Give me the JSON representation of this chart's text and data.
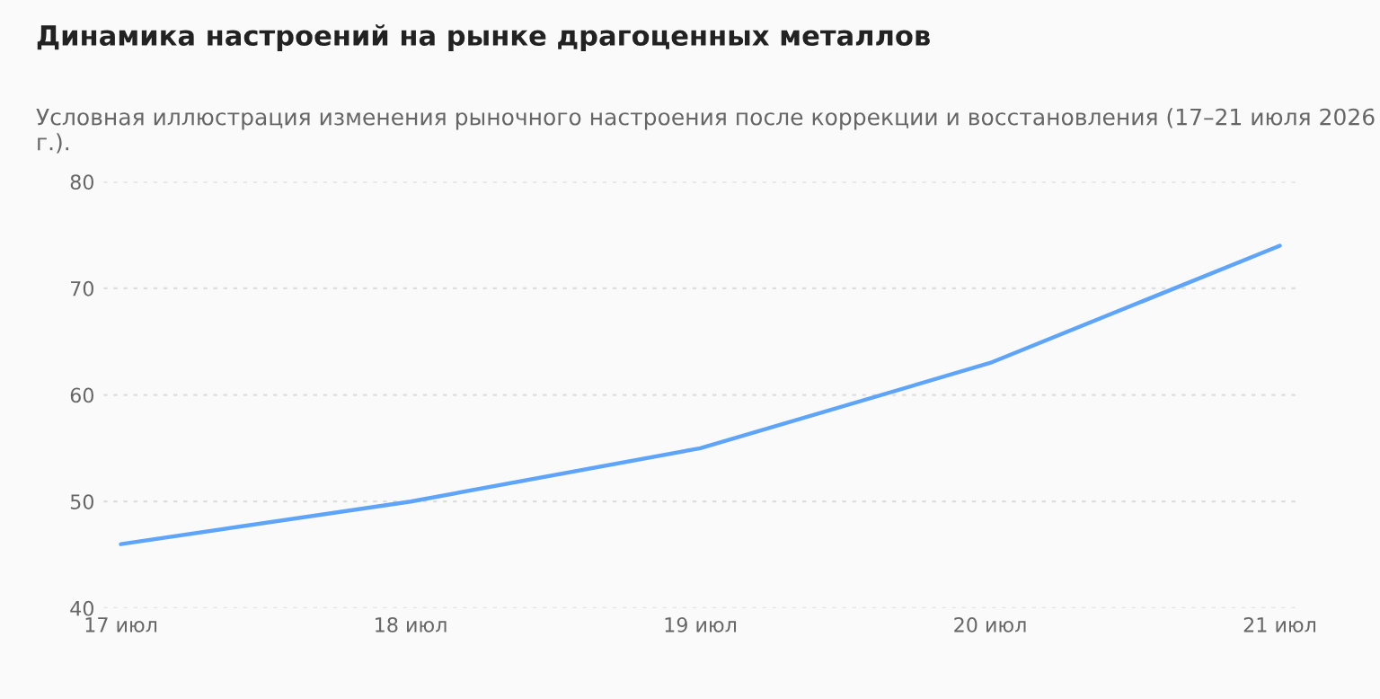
{
  "chart_data": {
    "type": "line",
    "title": "Динамика настроений на рынке драгоценных металлов",
    "subtitle": "Условная иллюстрация изменения рыночного настроения после коррекции и восстановления (17–21 июля 2026 г.).",
    "categories": [
      "17 июл",
      "18 июл",
      "19 июл",
      "20 июл",
      "21 июл"
    ],
    "series": [
      {
        "color": "#5ea4f8",
        "values": [
          46,
          50,
          55,
          63,
          74
        ]
      }
    ],
    "ylim": [
      40,
      80
    ],
    "yticks": [
      40,
      50,
      60,
      70,
      80
    ],
    "grid": "y",
    "legend": false,
    "marker": "none",
    "line_style": "solid"
  }
}
